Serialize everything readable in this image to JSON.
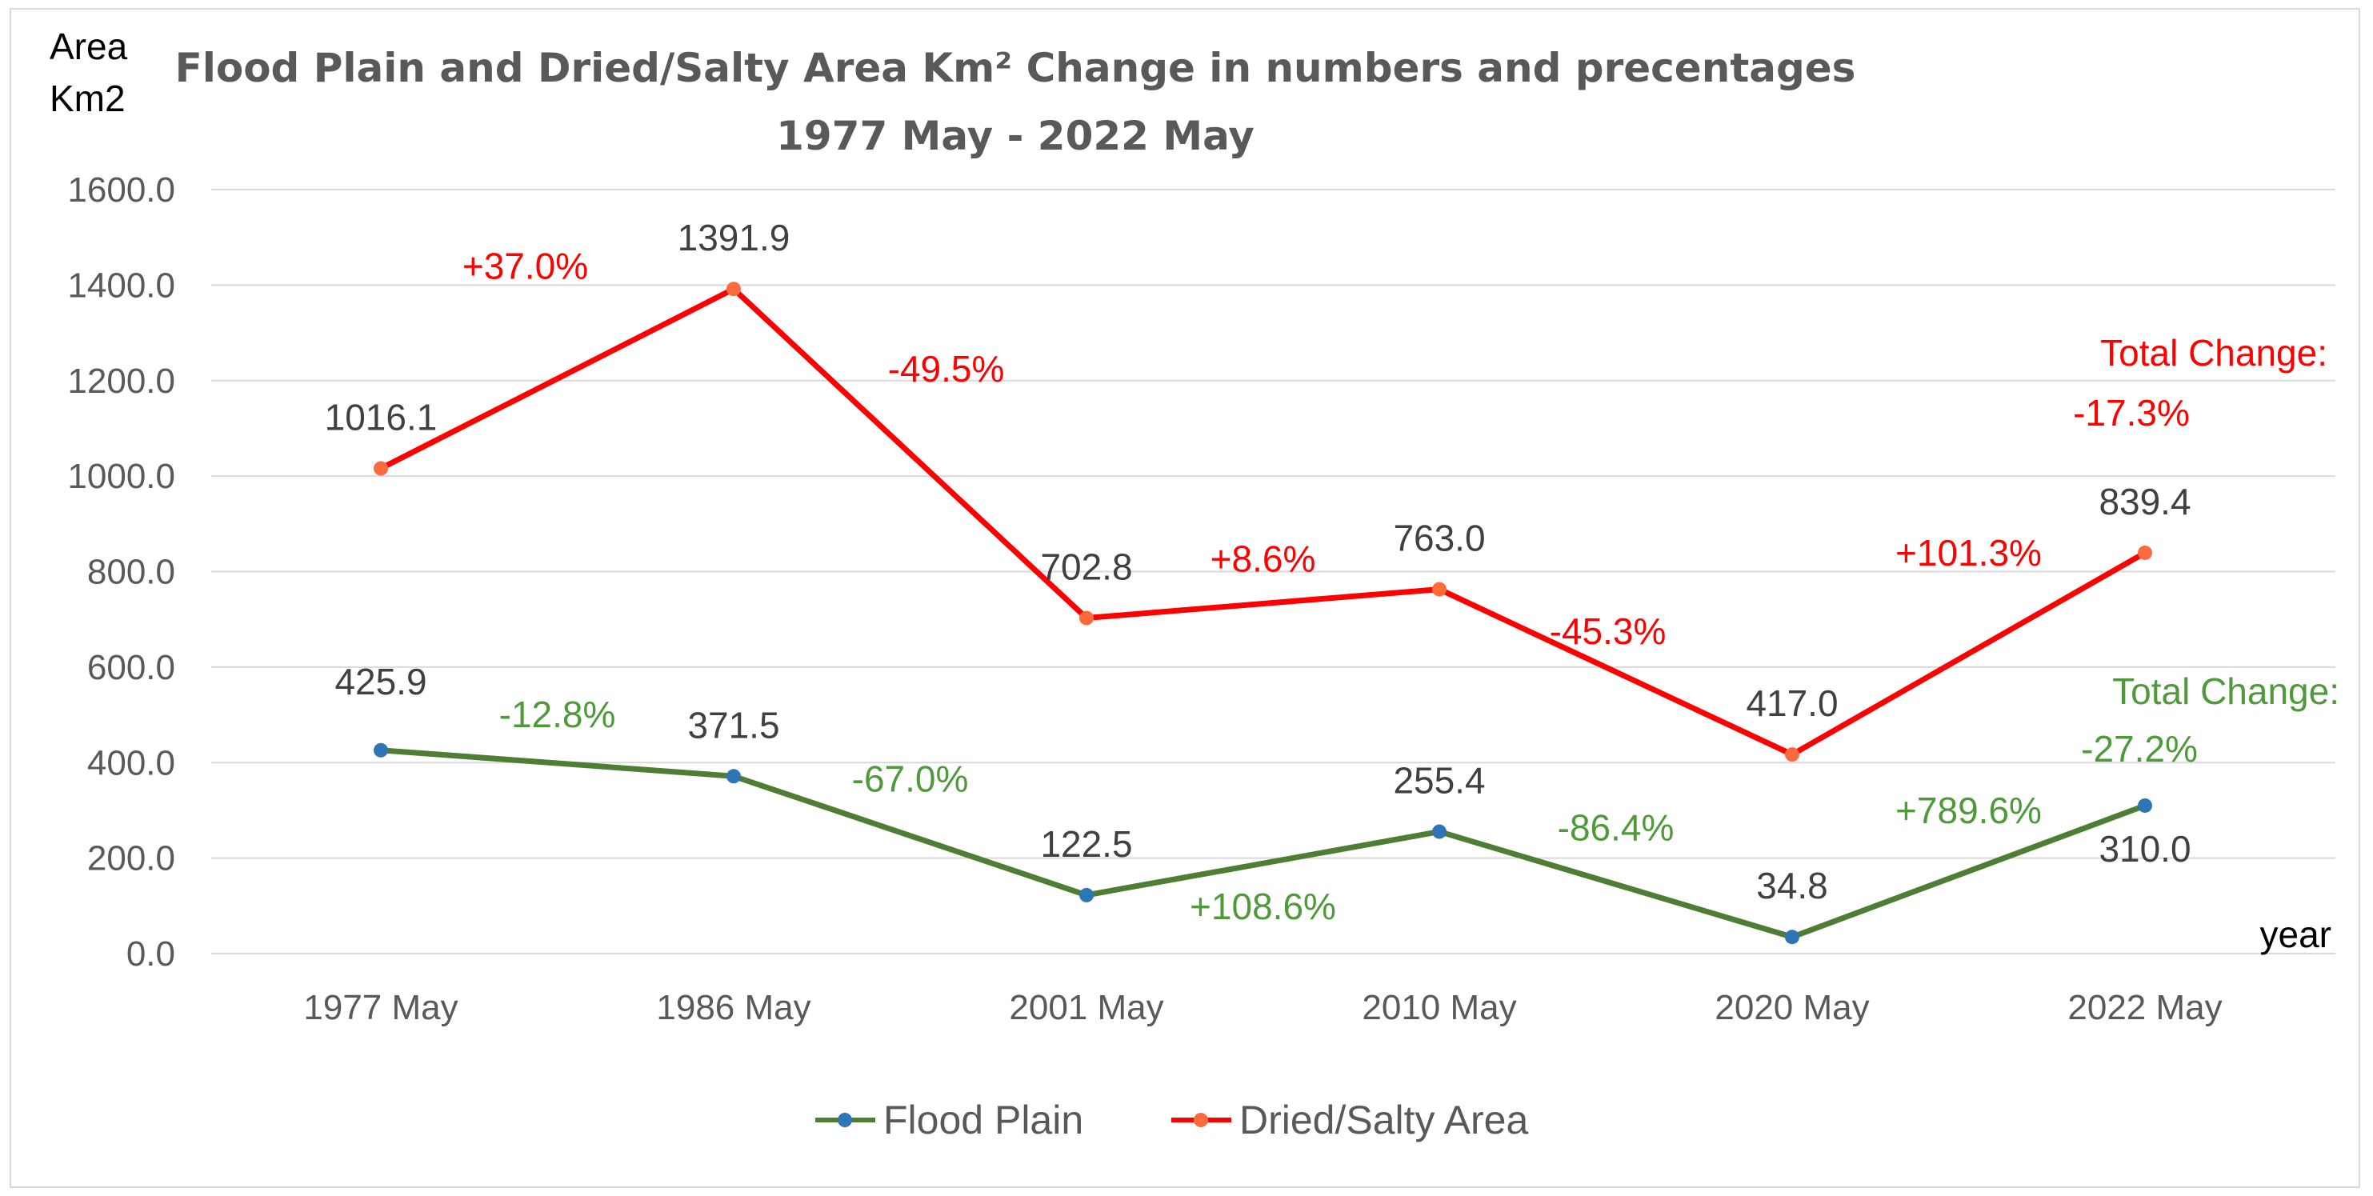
{
  "chart_data": {
    "type": "line",
    "title": "Flood Plain and Dried/Salty Area Km²  Change in numbers and precentages",
    "subtitle": "1977 May - 2022 May",
    "ylabel_line1": "Area",
    "ylabel_line2": "Km2",
    "xlabel": "year",
    "ylim": [
      0,
      1600
    ],
    "yticks": [
      "0.0",
      "200.0",
      "400.0",
      "600.0",
      "800.0",
      "1000.0",
      "1200.0",
      "1400.0",
      "1600.0"
    ],
    "grid": true,
    "legend_position": "bottom",
    "categories": [
      "1977 May",
      "1986 May",
      "2001 May",
      "2010 May",
      "2020 May",
      "2022 May"
    ],
    "series": [
      {
        "name": "Flood Plain",
        "color": "#4e7d34",
        "marker_color": "#2e75b6",
        "values": [
          425.9,
          371.5,
          122.5,
          255.4,
          34.8,
          310.0
        ],
        "value_labels": [
          "425.9",
          "371.5",
          "122.5",
          "255.4",
          "34.8",
          "310.0"
        ],
        "changes": [
          "-12.8%",
          "-67.0%",
          "+108.6%",
          "-86.4%",
          "+789.6%"
        ],
        "total_change_label": "Total  Change:",
        "total_change_value": "-27.2%"
      },
      {
        "name": "Dried/Salty Area",
        "color": "#ff0000",
        "marker_color": "#ff6a3d",
        "values": [
          1016.1,
          1391.9,
          702.8,
          763.0,
          417.0,
          839.4
        ],
        "value_labels": [
          "1016.1",
          "1391.9",
          "702.8",
          "763.0",
          "417.0",
          "839.4"
        ],
        "changes": [
          "+37.0%",
          "-49.5%",
          "+8.6%",
          "-45.3%",
          "+101.3%"
        ],
        "total_change_label": "Total  Change:",
        "total_change_value": "-17.3%"
      }
    ]
  }
}
